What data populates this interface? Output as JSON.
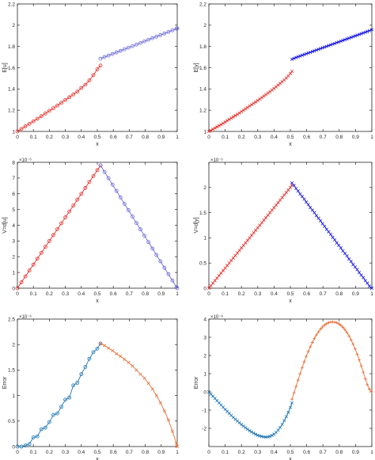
{
  "chart_data": [
    {
      "type": "line",
      "xlabel": "x",
      "ylabel": "E[u]",
      "xlim": [
        0,
        1
      ],
      "ylim": [
        1,
        2.2
      ],
      "xticks": [
        "0",
        "0.1",
        "0.2",
        "0.3",
        "0.4",
        "0.5",
        "0.6",
        "0.7",
        "0.8",
        "0.9",
        "1"
      ],
      "yticks": [
        "1",
        "1.2",
        "1.4",
        "1.6",
        "1.8",
        "2",
        "2.2"
      ],
      "exponent": "",
      "grid": false,
      "series": [
        {
          "color": "#e8302c",
          "marker": "circle",
          "x": [
            0,
            0.025,
            0.05,
            0.075,
            0.1,
            0.125,
            0.15,
            0.175,
            0.2,
            0.225,
            0.25,
            0.275,
            0.3,
            0.325,
            0.35,
            0.375,
            0.4,
            0.425,
            0.45,
            0.475,
            0.5,
            0.52
          ],
          "y": [
            1.0,
            1.024,
            1.048,
            1.072,
            1.096,
            1.12,
            1.144,
            1.169,
            1.194,
            1.219,
            1.244,
            1.27,
            1.296,
            1.322,
            1.348,
            1.374,
            1.41,
            1.44,
            1.48,
            1.53,
            1.585,
            1.62
          ]
        },
        {
          "color": "#6b6bd6",
          "marker": "circle",
          "x": [
            0.52,
            0.545,
            0.57,
            0.595,
            0.62,
            0.645,
            0.67,
            0.695,
            0.72,
            0.745,
            0.77,
            0.795,
            0.82,
            0.845,
            0.87,
            0.895,
            0.92,
            0.945,
            0.97,
            0.995,
            1.0
          ],
          "y": [
            1.685,
            1.7,
            1.714,
            1.729,
            1.744,
            1.759,
            1.774,
            1.789,
            1.803,
            1.818,
            1.833,
            1.848,
            1.863,
            1.878,
            1.892,
            1.907,
            1.922,
            1.937,
            1.952,
            1.967,
            1.97
          ]
        }
      ]
    },
    {
      "type": "line",
      "xlabel": "x",
      "ylabel": "E[y]",
      "xlim": [
        0,
        1
      ],
      "ylim": [
        1,
        2.2
      ],
      "xticks": [
        "0",
        "0.1",
        "0.2",
        "0.3",
        "0.4",
        "0.5",
        "0.6",
        "0.7",
        "0.8",
        "0.9",
        "1"
      ],
      "yticks": [
        "1",
        "1.2",
        "1.4",
        "1.6",
        "1.8",
        "2",
        "2.2"
      ],
      "exponent": "",
      "grid": false,
      "series": [
        {
          "color": "#e8302c",
          "marker": "cross",
          "x": [
            0,
            0.0125,
            0.025,
            0.0375,
            0.05,
            0.0625,
            0.075,
            0.0875,
            0.1,
            0.1125,
            0.125,
            0.1375,
            0.15,
            0.1625,
            0.175,
            0.1875,
            0.2,
            0.2125,
            0.225,
            0.2375,
            0.25,
            0.2625,
            0.275,
            0.2875,
            0.3,
            0.3125,
            0.325,
            0.3375,
            0.35,
            0.3625,
            0.375,
            0.3875,
            0.4,
            0.4125,
            0.425,
            0.4375,
            0.45,
            0.4625,
            0.475,
            0.4875,
            0.5,
            0.51
          ],
          "y": [
            1.0,
            1.01,
            1.021,
            1.032,
            1.043,
            1.054,
            1.065,
            1.077,
            1.089,
            1.101,
            1.113,
            1.125,
            1.137,
            1.149,
            1.161,
            1.174,
            1.187,
            1.2,
            1.213,
            1.226,
            1.239,
            1.252,
            1.265,
            1.278,
            1.291,
            1.305,
            1.319,
            1.333,
            1.347,
            1.361,
            1.375,
            1.39,
            1.405,
            1.42,
            1.436,
            1.452,
            1.468,
            1.485,
            1.503,
            1.523,
            1.545,
            1.565
          ]
        },
        {
          "color": "#1a1ae6",
          "marker": "cross",
          "x": [
            0.51,
            0.5225,
            0.535,
            0.5475,
            0.56,
            0.5725,
            0.585,
            0.5975,
            0.61,
            0.6225,
            0.635,
            0.6475,
            0.66,
            0.6725,
            0.685,
            0.6975,
            0.71,
            0.7225,
            0.735,
            0.7475,
            0.76,
            0.7725,
            0.785,
            0.7975,
            0.81,
            0.8225,
            0.835,
            0.8475,
            0.86,
            0.8725,
            0.885,
            0.8975,
            0.91,
            0.9225,
            0.935,
            0.9475,
            0.96,
            0.9725,
            0.985,
            1.0
          ],
          "y": [
            1.68,
            1.688,
            1.696,
            1.703,
            1.71,
            1.717,
            1.724,
            1.731,
            1.738,
            1.745,
            1.752,
            1.759,
            1.766,
            1.773,
            1.78,
            1.787,
            1.794,
            1.801,
            1.808,
            1.815,
            1.822,
            1.829,
            1.836,
            1.843,
            1.85,
            1.857,
            1.864,
            1.871,
            1.878,
            1.885,
            1.892,
            1.899,
            1.906,
            1.913,
            1.92,
            1.927,
            1.934,
            1.941,
            1.948,
            1.958
          ]
        }
      ]
    },
    {
      "type": "line",
      "xlabel": "x",
      "ylabel": "V=d[u]",
      "xlim": [
        0,
        1
      ],
      "ylim": [
        0,
        8
      ],
      "xticks": [
        "0",
        "0.1",
        "0.2",
        "0.3",
        "0.4",
        "0.5",
        "0.6",
        "0.7",
        "0.8",
        "0.9",
        "1"
      ],
      "yticks": [
        "0",
        "1",
        "2",
        "3",
        "4",
        "5",
        "6",
        "7",
        "8"
      ],
      "exponent": "×10⁻⁶",
      "grid": false,
      "series": [
        {
          "color": "#e8302c",
          "marker": "circle",
          "x": [
            0,
            0.025,
            0.05,
            0.075,
            0.1,
            0.125,
            0.15,
            0.175,
            0.2,
            0.225,
            0.25,
            0.275,
            0.3,
            0.325,
            0.35,
            0.375,
            0.4,
            0.425,
            0.45,
            0.475,
            0.5,
            0.52
          ],
          "y": [
            0,
            0.375,
            0.75,
            1.125,
            1.5,
            1.875,
            2.25,
            2.625,
            3.0,
            3.375,
            3.75,
            4.125,
            4.5,
            4.875,
            5.25,
            5.625,
            6.0,
            6.375,
            6.75,
            7.125,
            7.5,
            7.8
          ]
        },
        {
          "color": "#6b6bd6",
          "marker": "circle",
          "x": [
            0.52,
            0.545,
            0.57,
            0.595,
            0.62,
            0.645,
            0.67,
            0.695,
            0.72,
            0.745,
            0.77,
            0.795,
            0.82,
            0.845,
            0.87,
            0.895,
            0.92,
            0.945,
            0.97,
            0.995,
            1.0
          ],
          "y": [
            7.8,
            7.39,
            6.99,
            6.58,
            6.18,
            5.77,
            5.36,
            4.96,
            4.55,
            4.14,
            3.74,
            3.33,
            2.93,
            2.52,
            2.11,
            1.71,
            1.3,
            0.89,
            0.49,
            0.08,
            0
          ]
        }
      ]
    },
    {
      "type": "line",
      "xlabel": "x",
      "ylabel": "V=d[y]",
      "xlim": [
        0,
        1
      ],
      "ylim": [
        0,
        2.5
      ],
      "xticks": [
        "0",
        "0.1",
        "0.2",
        "0.3",
        "0.4",
        "0.5",
        "0.6",
        "0.7",
        "0.8",
        "0.9",
        "1"
      ],
      "yticks": [
        "0",
        "0.5",
        "1",
        "1.5",
        "2"
      ],
      "exponent": "×10⁻⁶",
      "grid": false,
      "series": [
        {
          "color": "#e8302c",
          "marker": "cross",
          "x": [
            0,
            0.0125,
            0.025,
            0.0375,
            0.05,
            0.0625,
            0.075,
            0.0875,
            0.1,
            0.1125,
            0.125,
            0.1375,
            0.15,
            0.1625,
            0.175,
            0.1875,
            0.2,
            0.2125,
            0.225,
            0.2375,
            0.25,
            0.2625,
            0.275,
            0.2875,
            0.3,
            0.3125,
            0.325,
            0.3375,
            0.35,
            0.3625,
            0.375,
            0.3875,
            0.4,
            0.4125,
            0.425,
            0.4375,
            0.45,
            0.4625,
            0.475,
            0.4875,
            0.5,
            0.51
          ],
          "y": [
            0,
            0.05,
            0.1,
            0.15,
            0.2,
            0.25,
            0.3,
            0.35,
            0.4,
            0.45,
            0.5,
            0.55,
            0.6,
            0.65,
            0.7,
            0.75,
            0.8,
            0.85,
            0.9,
            0.95,
            1.0,
            1.05,
            1.1,
            1.15,
            1.2,
            1.25,
            1.3,
            1.35,
            1.4,
            1.45,
            1.5,
            1.55,
            1.6,
            1.65,
            1.7,
            1.75,
            1.8,
            1.85,
            1.9,
            1.95,
            2.0,
            2.05
          ]
        },
        {
          "color": "#1a1ae6",
          "marker": "cross",
          "x": [
            0.51,
            0.5225,
            0.535,
            0.5475,
            0.56,
            0.5725,
            0.585,
            0.5975,
            0.61,
            0.6225,
            0.635,
            0.6475,
            0.66,
            0.6725,
            0.685,
            0.6975,
            0.71,
            0.7225,
            0.735,
            0.7475,
            0.76,
            0.7725,
            0.785,
            0.7975,
            0.81,
            0.8225,
            0.835,
            0.8475,
            0.86,
            0.8725,
            0.885,
            0.8975,
            0.91,
            0.9225,
            0.935,
            0.9475,
            0.96,
            0.9725,
            0.985,
            1.0
          ],
          "y": [
            2.09,
            2.04,
            1.98,
            1.93,
            1.87,
            1.82,
            1.77,
            1.71,
            1.66,
            1.6,
            1.55,
            1.5,
            1.44,
            1.39,
            1.34,
            1.28,
            1.23,
            1.17,
            1.12,
            1.07,
            1.01,
            0.96,
            0.9,
            0.85,
            0.8,
            0.74,
            0.69,
            0.64,
            0.58,
            0.53,
            0.47,
            0.42,
            0.37,
            0.31,
            0.26,
            0.21,
            0.15,
            0.1,
            0.04,
            0
          ]
        }
      ]
    },
    {
      "type": "line",
      "xlabel": "x",
      "ylabel": "Error",
      "xlim": [
        0,
        1
      ],
      "ylim": [
        0,
        2.5
      ],
      "xticks": [
        "0",
        "0.1",
        "0.2",
        "0.3",
        "0.4",
        "0.5",
        "0.6",
        "0.7",
        "0.8",
        "0.9",
        "1"
      ],
      "yticks": [
        "0",
        "0.5",
        "1",
        "1.5",
        "2",
        "2.5"
      ],
      "exponent": "×10⁻⁶",
      "grid": false,
      "series": [
        {
          "color": "#1f77b4",
          "marker": "circle",
          "x": [
            0,
            0.025,
            0.05,
            0.075,
            0.1,
            0.125,
            0.15,
            0.175,
            0.2,
            0.225,
            0.25,
            0.275,
            0.3,
            0.325,
            0.35,
            0.375,
            0.4,
            0.425,
            0.45,
            0.475,
            0.5,
            0.52
          ],
          "y": [
            0.0,
            0.0,
            0.02,
            0.05,
            0.18,
            0.2,
            0.34,
            0.37,
            0.48,
            0.62,
            0.65,
            0.78,
            0.92,
            0.96,
            1.2,
            1.25,
            1.42,
            1.56,
            1.72,
            1.85,
            1.92,
            2.02
          ]
        },
        {
          "color": "#e8703a",
          "marker": "cross",
          "x": [
            0.52,
            0.545,
            0.57,
            0.595,
            0.62,
            0.645,
            0.67,
            0.695,
            0.72,
            0.745,
            0.77,
            0.795,
            0.82,
            0.845,
            0.87,
            0.895,
            0.92,
            0.945,
            0.97,
            0.995,
            1.0
          ],
          "y": [
            2.02,
            1.98,
            1.93,
            1.88,
            1.82,
            1.77,
            1.71,
            1.65,
            1.58,
            1.5,
            1.42,
            1.34,
            1.24,
            1.13,
            1.0,
            0.86,
            0.7,
            0.52,
            0.3,
            0.06,
            0.0
          ]
        }
      ]
    },
    {
      "type": "line",
      "xlabel": "x",
      "ylabel": "Error",
      "xlim": [
        0,
        1
      ],
      "ylim": [
        -3,
        4
      ],
      "xticks": [
        "0",
        "0.1",
        "0.2",
        "0.3",
        "0.4",
        "0.5",
        "0.6",
        "0.7",
        "0.8",
        "0.9",
        "1"
      ],
      "yticks": [
        "-2",
        "-1",
        "0",
        "1",
        "2",
        "3",
        "4"
      ],
      "exponent": "×10⁻⁸",
      "grid": false,
      "series": [
        {
          "color": "#1f77b4",
          "marker": "cross",
          "x": [
            0,
            0.0125,
            0.025,
            0.0375,
            0.05,
            0.0625,
            0.075,
            0.0875,
            0.1,
            0.1125,
            0.125,
            0.1375,
            0.15,
            0.1625,
            0.175,
            0.1875,
            0.2,
            0.2125,
            0.225,
            0.2375,
            0.25,
            0.2625,
            0.275,
            0.2875,
            0.3,
            0.3125,
            0.325,
            0.3375,
            0.35,
            0.3625,
            0.375,
            0.3875,
            0.4,
            0.4125,
            0.425,
            0.4375,
            0.45,
            0.4625,
            0.475,
            0.4875,
            0.5,
            0.51
          ],
          "y": [
            0.0,
            -0.12,
            -0.24,
            -0.36,
            -0.48,
            -0.6,
            -0.72,
            -0.84,
            -0.96,
            -1.07,
            -1.18,
            -1.29,
            -1.4,
            -1.5,
            -1.6,
            -1.7,
            -1.79,
            -1.88,
            -1.97,
            -2.05,
            -2.13,
            -2.2,
            -2.27,
            -2.33,
            -2.38,
            -2.42,
            -2.45,
            -2.47,
            -2.48,
            -2.47,
            -2.44,
            -2.39,
            -2.32,
            -2.22,
            -2.1,
            -1.95,
            -1.78,
            -1.58,
            -1.36,
            -1.12,
            -0.85,
            -0.6
          ]
        },
        {
          "color": "#e8703a",
          "marker": "plus",
          "x": [
            0.51,
            0.5225,
            0.535,
            0.5475,
            0.56,
            0.5725,
            0.585,
            0.5975,
            0.61,
            0.6225,
            0.635,
            0.6475,
            0.66,
            0.6725,
            0.685,
            0.6975,
            0.71,
            0.7225,
            0.735,
            0.7475,
            0.76,
            0.7725,
            0.785,
            0.7975,
            0.81,
            0.8225,
            0.835,
            0.8475,
            0.86,
            0.8725,
            0.885,
            0.8975,
            0.91,
            0.9225,
            0.935,
            0.9475,
            0.96,
            0.9725,
            0.985,
            1.0
          ],
          "y": [
            -0.4,
            -0.05,
            0.3,
            0.65,
            1.0,
            1.33,
            1.65,
            1.95,
            2.22,
            2.48,
            2.72,
            2.94,
            3.13,
            3.3,
            3.45,
            3.57,
            3.67,
            3.75,
            3.8,
            3.83,
            3.84,
            3.83,
            3.8,
            3.74,
            3.66,
            3.55,
            3.42,
            3.26,
            3.07,
            2.86,
            2.62,
            2.36,
            2.07,
            1.76,
            1.43,
            1.08,
            0.72,
            0.4,
            0.15,
            0.0
          ]
        }
      ]
    }
  ]
}
